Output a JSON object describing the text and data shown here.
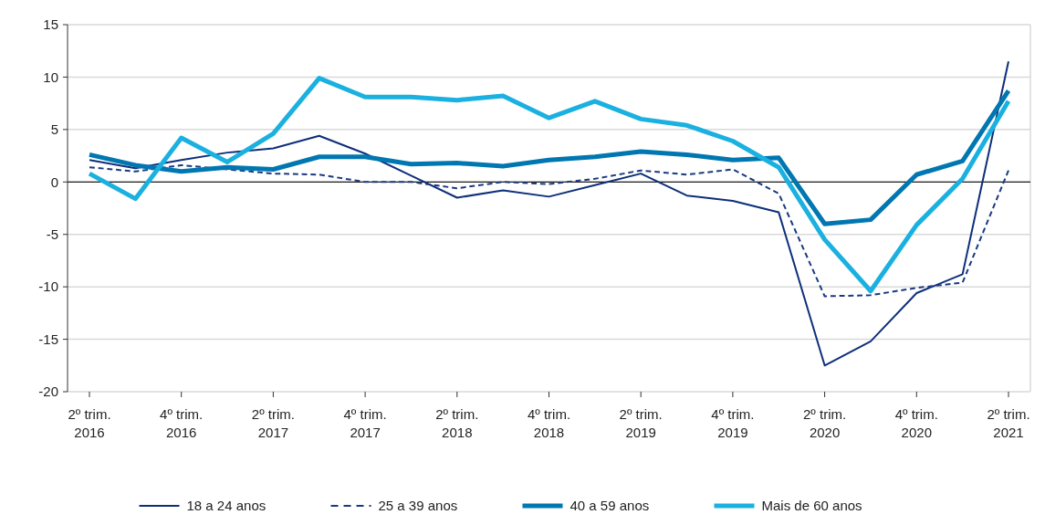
{
  "chart_data": {
    "type": "line",
    "categories": [
      "2º trim.\n2016",
      null,
      "4º trim.\n2016",
      null,
      "2º trim.\n2017",
      null,
      "4º trim.\n2017",
      null,
      "2º trim.\n2018",
      null,
      "4º trim.\n2018",
      null,
      "2º trim.\n2019",
      null,
      "4º trim.\n2019",
      null,
      "2º trim.\n2020",
      null,
      "4º trim.\n2020",
      null,
      "2º trim.\n2021"
    ],
    "series": [
      {
        "name": "18 a 24 anos",
        "color": "#0d2f7a",
        "line_style": "solid",
        "values": [
          2.1,
          1.3,
          2.1,
          2.8,
          3.2,
          4.4,
          2.7,
          0.6,
          -1.5,
          -0.8,
          -1.4,
          -0.3,
          0.8,
          -1.3,
          -1.8,
          -2.9,
          -17.5,
          -15.2,
          -10.6,
          -8.8,
          11.5
        ]
      },
      {
        "name": "25 a 39 anos",
        "color": "#1a3a80",
        "line_style": "dashed",
        "values": [
          1.4,
          1.0,
          1.6,
          1.2,
          0.8,
          0.7,
          0.0,
          0.0,
          -0.6,
          0.0,
          -0.2,
          0.3,
          1.1,
          0.7,
          1.2,
          -1.1,
          -10.9,
          -10.8,
          -10.1,
          -9.6,
          1.1
        ]
      },
      {
        "name": "40 a 59 anos",
        "color": "#0077b0",
        "line_style": "solid",
        "values": [
          2.6,
          1.6,
          1.0,
          1.4,
          1.2,
          2.4,
          2.4,
          1.7,
          1.8,
          1.5,
          2.1,
          2.4,
          2.9,
          2.6,
          2.1,
          2.3,
          -4.0,
          -3.6,
          0.7,
          2.0,
          8.7
        ]
      },
      {
        "name": "Mais de 60 anos",
        "color": "#1ab0e0",
        "line_style": "solid",
        "values": [
          0.8,
          -1.6,
          4.2,
          1.9,
          4.6,
          9.9,
          8.1,
          8.1,
          7.8,
          8.2,
          6.1,
          7.7,
          6.0,
          5.4,
          3.9,
          1.4,
          -5.5,
          -10.4,
          -4.1,
          0.3,
          7.7
        ]
      }
    ],
    "ylim": [
      -20,
      15
    ],
    "yticks": [
      -20,
      -15,
      -10,
      -5,
      0,
      5,
      10,
      15
    ],
    "grid": "y",
    "legend": "bottom"
  }
}
